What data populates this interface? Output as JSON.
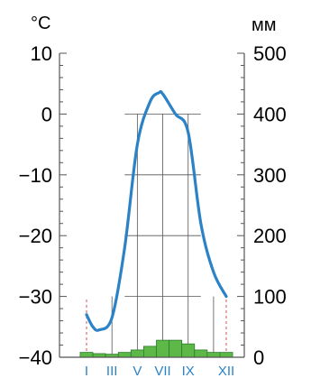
{
  "chart_data": {
    "type": "line",
    "title": "",
    "temperature": {
      "unit": "°C",
      "ylim": [
        -40,
        10
      ],
      "ticks": [
        10,
        0,
        -10,
        -20,
        -30,
        -40
      ],
      "tick_labels": [
        "10",
        "0",
        "−10",
        "−20",
        "−30",
        "−40"
      ],
      "x": [
        1,
        1.5,
        2,
        3,
        4,
        5,
        6,
        6.7,
        7,
        8,
        9,
        10,
        11,
        12
      ],
      "values": [
        -33,
        -35,
        -35.5,
        -33.5,
        -22,
        -5,
        2,
        3.5,
        3.3,
        0,
        -3,
        -18,
        -26,
        -30
      ]
    },
    "precipitation": {
      "unit": "мм",
      "ylim": [
        0,
        500
      ],
      "ticks": [
        500,
        400,
        300,
        200,
        100,
        0
      ],
      "tick_labels": [
        "500",
        "400",
        "300",
        "200",
        "100",
        "0"
      ],
      "categories": [
        1,
        2,
        3,
        4,
        5,
        6,
        7,
        8,
        9,
        10,
        11,
        12
      ],
      "values": [
        8,
        6,
        5,
        8,
        12,
        18,
        28,
        28,
        22,
        12,
        8,
        8
      ]
    },
    "month_labels": [
      "I",
      "III",
      "V",
      "VII",
      "IX",
      "XII"
    ],
    "colors": {
      "temperature_line": "#2b82c7",
      "precipitation_fill": "#5db847",
      "precipitation_stroke": "#2e7d2e",
      "grid": "#555555",
      "dashed": "#d45050",
      "month_labels": "#2b82c7"
    }
  }
}
